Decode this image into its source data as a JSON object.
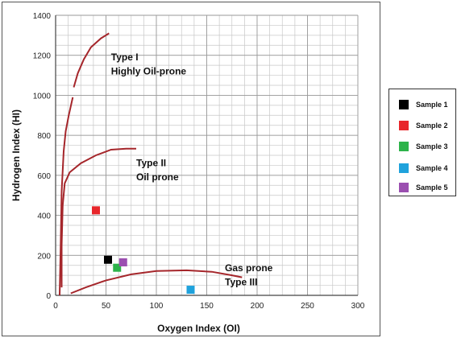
{
  "chart_data": {
    "type": "scatter",
    "xlabel": "Oxygen Index (OI)",
    "ylabel": "Hydrogen Index (HI)",
    "xlim": [
      0,
      300
    ],
    "ylim": [
      0,
      1400
    ],
    "x_ticks": [
      0,
      50,
      100,
      150,
      200,
      250,
      300
    ],
    "y_ticks": [
      0,
      200,
      400,
      600,
      800,
      1000,
      1200,
      1400
    ],
    "grid": true,
    "legend_position": "right",
    "series": [
      {
        "name": "Sample 1",
        "color": "#000000",
        "points": [
          [
            52,
            178
          ]
        ]
      },
      {
        "name": "Sample 2",
        "color": "#e8262b",
        "points": [
          [
            40,
            425
          ]
        ]
      },
      {
        "name": "Sample 3",
        "color": "#2db34a",
        "points": [
          [
            61,
            138
          ]
        ]
      },
      {
        "name": "Sample 4",
        "color": "#1fa2dc",
        "points": [
          [
            134,
            28
          ]
        ]
      },
      {
        "name": "Sample 5",
        "color": "#9b4fb0",
        "points": [
          [
            67,
            165
          ]
        ]
      }
    ],
    "curves": [
      {
        "color": "#a5262b",
        "points": [
          [
            4,
            0
          ],
          [
            5,
            250
          ],
          [
            6,
            520
          ],
          [
            8,
            720
          ],
          [
            10,
            820
          ],
          [
            13,
            900
          ],
          [
            17,
            990
          ]
        ]
      },
      {
        "color": "#a5262b",
        "points": [
          [
            18,
            1040
          ],
          [
            22,
            1110
          ],
          [
            28,
            1180
          ],
          [
            35,
            1240
          ],
          [
            45,
            1285
          ],
          [
            53,
            1310
          ]
        ]
      },
      {
        "color": "#a5262b",
        "points": [
          [
            6,
            40
          ],
          [
            6,
            250
          ],
          [
            7,
            450
          ],
          [
            9,
            560
          ],
          [
            14,
            615
          ],
          [
            25,
            660
          ],
          [
            40,
            700
          ],
          [
            55,
            728
          ],
          [
            70,
            733
          ],
          [
            80,
            733
          ]
        ]
      },
      {
        "color": "#a5262b",
        "points": [
          [
            15,
            10
          ],
          [
            30,
            40
          ],
          [
            50,
            75
          ],
          [
            75,
            105
          ],
          [
            100,
            122
          ],
          [
            130,
            125
          ],
          [
            155,
            118
          ],
          [
            175,
            100
          ],
          [
            185,
            90
          ]
        ]
      }
    ],
    "annotations": [
      {
        "text": "Type I",
        "x": 55,
        "y": 1175
      },
      {
        "text": "Highly Oil-prone",
        "x": 55,
        "y": 1105
      },
      {
        "text": "Type II",
        "x": 80,
        "y": 645
      },
      {
        "text": "Oil prone",
        "x": 80,
        "y": 575
      },
      {
        "text": "Gas prone",
        "x": 168,
        "y": 120
      },
      {
        "text": "Type III",
        "x": 168,
        "y": 50
      }
    ]
  }
}
